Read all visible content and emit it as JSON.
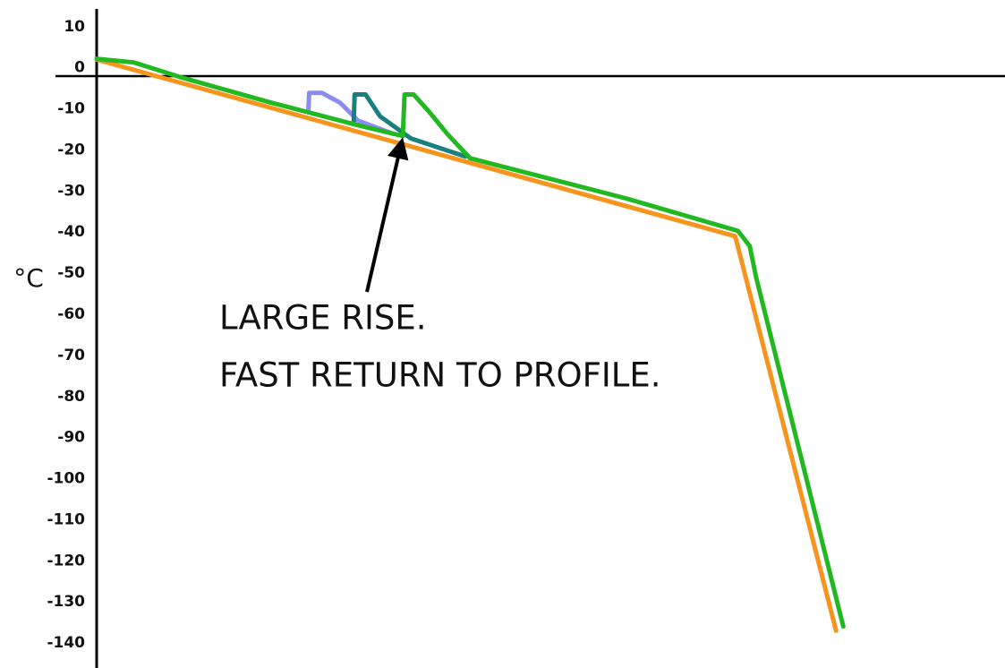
{
  "chart_data": {
    "type": "line",
    "ylabel": "°C",
    "annotation": [
      "LARGE RISE.",
      "FAST RETURN TO PROFILE."
    ],
    "xlim": [
      0,
      100
    ],
    "ylim": [
      -145,
      16.5
    ],
    "yticks": [
      10,
      0,
      -10,
      -20,
      -30,
      -40,
      -50,
      -60,
      -70,
      -80,
      -90,
      -100,
      -110,
      -120,
      -130,
      -140
    ],
    "series": [
      {
        "color": "#f7941d",
        "x": [
          0,
          70.3,
          81.4
        ],
        "values": [
          2,
          -41,
          -137
        ]
      },
      {
        "color": "#8c8cf0",
        "x": [
          23.3,
          23.4,
          24.8,
          26.8,
          28.8,
          32.7
        ],
        "values": [
          -10.7,
          -6.1,
          -6.1,
          -8.5,
          -12.9,
          -16.1
        ]
      },
      {
        "color": "#1a7f7f",
        "x": [
          28.3,
          28.4,
          29.6,
          31.2,
          34.6,
          40.6
        ],
        "values": [
          -13.5,
          -6.5,
          -6.5,
          -11.8,
          -17.2,
          -21.6
        ]
      },
      {
        "color": "#22b822",
        "x": [
          0,
          4.1,
          9.1,
          18.9,
          28.8,
          33.7,
          33.9,
          34.9,
          36.6,
          38.6,
          41.1,
          58.3,
          70.6,
          71.9,
          72.6,
          82.2
        ],
        "values": [
          2.2,
          1.3,
          -2.2,
          -8.3,
          -14,
          -16.6,
          -6.5,
          -6.5,
          -10.7,
          -16.1,
          -22,
          -31.8,
          -39.7,
          -43.4,
          -51,
          -136
        ]
      }
    ]
  }
}
